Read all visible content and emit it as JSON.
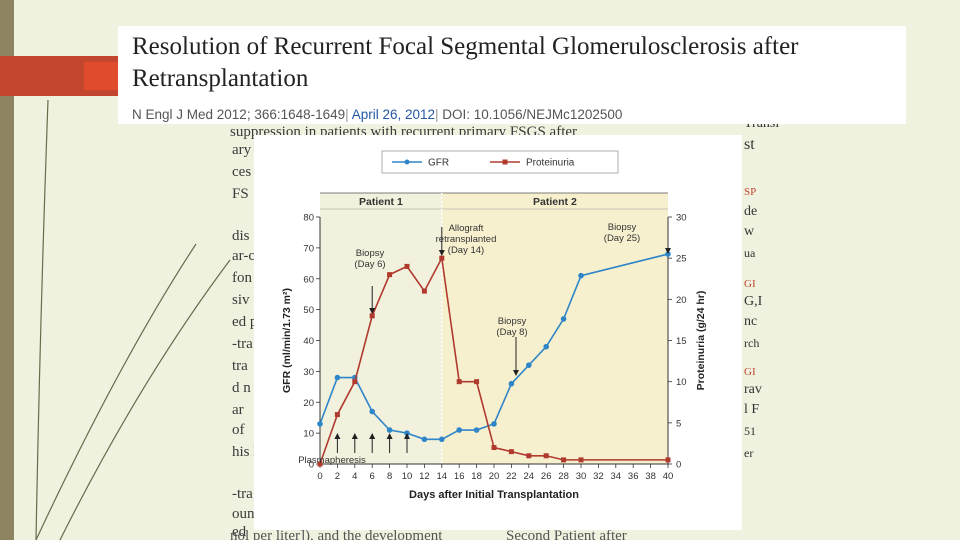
{
  "header": {
    "title": "Resolution of Recurrent Focal Segmental Glomerulosclerosis after Retransplantation",
    "journal": "N Engl J Med 2012; 366:1648-1649",
    "separator_1": "|",
    "date": "April 26, 2012",
    "separator_2": "|",
    "doi": "DOI: 10.1056/NEJMc1202500"
  },
  "background_text": {
    "top_line": "suppression in patients with recurrent primary FSGS after",
    "bottom_line": "nol per liter]), and the development",
    "bottom_right": "Second Patient after",
    "left_fragments": [
      "ary",
      "ces",
      "FS",
      "dis",
      "ar-c",
      "fon",
      "siv",
      "ed p",
      "-tra",
      "tra",
      "d n",
      "ar",
      "of",
      "his l",
      "-tra",
      "oun",
      "ed"
    ],
    "right_fragments": [
      "Transl",
      "st",
      "SP",
      "de",
      "w",
      "ua",
      "GI",
      "G,I",
      "nc",
      "rch",
      "GI",
      "rav",
      "l F",
      "51",
      "er"
    ]
  },
  "chart_data": {
    "type": "line",
    "xlabel": "Days after Initial Transplantation",
    "ylabel": "GFR (ml/min/1.73 m²)",
    "ylabel2": "Proteinuria (g/24 hr)",
    "xlim": [
      0,
      40
    ],
    "ylim": [
      0,
      80
    ],
    "ylim2": [
      0,
      30
    ],
    "xticks": [
      0,
      2,
      4,
      6,
      8,
      10,
      12,
      14,
      16,
      18,
      20,
      22,
      24,
      26,
      28,
      30,
      32,
      34,
      36,
      38,
      40
    ],
    "yticks": [
      0,
      10,
      20,
      30,
      40,
      50,
      60,
      70,
      80
    ],
    "yticks2": [
      0,
      5,
      10,
      15,
      20,
      25,
      30
    ],
    "legend_position": "top-center",
    "series": [
      {
        "name": "GFR",
        "axis": "left",
        "color": "#2e86c8",
        "x": [
          0,
          2,
          4,
          6,
          8,
          10,
          12,
          14,
          16,
          18,
          20,
          22,
          24,
          26,
          28,
          30,
          40
        ],
        "values": [
          13,
          28,
          28,
          17,
          11,
          10,
          8,
          8,
          11,
          11,
          13,
          26,
          32,
          38,
          47,
          61,
          68
        ]
      },
      {
        "name": "Proteinuria",
        "axis": "right",
        "color": "#b03a2e",
        "x": [
          0,
          2,
          4,
          6,
          8,
          10,
          12,
          14,
          16,
          18,
          20,
          22,
          24,
          26,
          28,
          30,
          40
        ],
        "values": [
          0,
          6,
          10,
          18,
          23,
          24,
          21,
          25,
          10,
          10,
          2,
          1.5,
          1,
          1,
          0.5,
          0.5,
          0.5
        ]
      }
    ],
    "regions": [
      {
        "label": "Patient 1",
        "from": 0,
        "to": 14,
        "color": "#f1f1dd"
      },
      {
        "label": "Patient 2",
        "from": 14,
        "to": 40,
        "color": "#f7f0cf"
      }
    ],
    "annotations": [
      {
        "lines": [
          "Biopsy",
          "(Day 6)"
        ],
        "x": 6
      },
      {
        "lines": [
          "Allograft",
          "retransplanted",
          "(Day 14)"
        ],
        "x": 14
      },
      {
        "lines": [
          "Biopsy",
          "(Day 25)"
        ],
        "x": 40
      },
      {
        "lines": [
          "Biopsy",
          "(Day 8)"
        ],
        "x": 22
      },
      {
        "lines": [
          "Plasmapheresis"
        ],
        "x": 2
      }
    ],
    "plasmapheresis_days": [
      2,
      4,
      6,
      8,
      10
    ]
  }
}
